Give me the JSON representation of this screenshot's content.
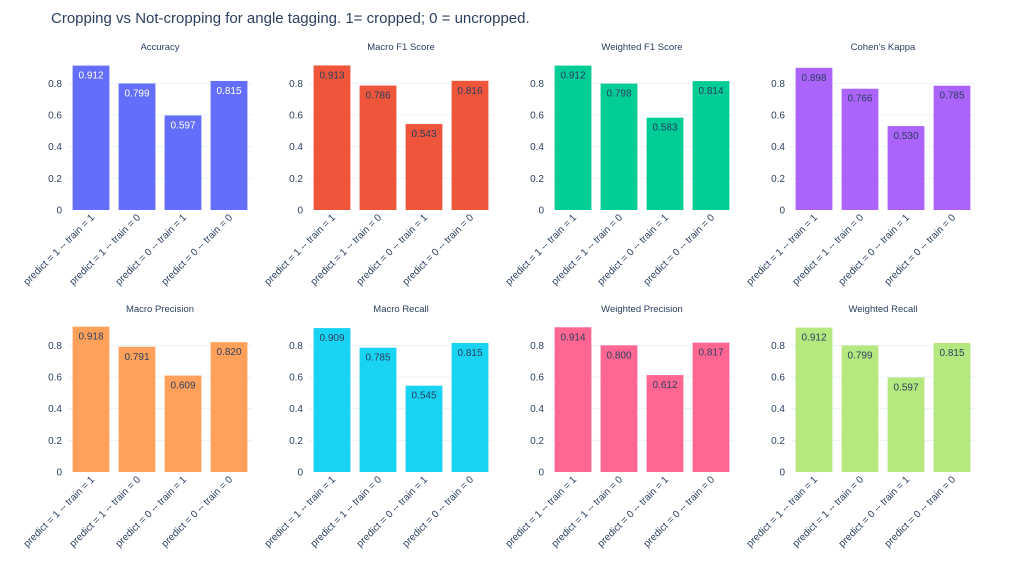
{
  "title": "Cropping vs Not-cropping for angle tagging. 1= cropped; 0 = uncropped.",
  "chart_data": [
    {
      "type": "bar",
      "title": "Accuracy",
      "color": "#636efa",
      "label_color": "#ffffff",
      "categories": [
        "predict = 1 -- train = 1",
        "predict = 1 -- train = 0",
        "predict = 0 -- train = 1",
        "predict = 0 -- train = 0"
      ],
      "values": [
        0.912,
        0.799,
        0.597,
        0.815
      ],
      "labels": [
        "0.912",
        "0.799",
        "0.597",
        "0.815"
      ],
      "yticks": [
        "0",
        "0.2",
        "0.4",
        "0.6",
        "0.8"
      ],
      "ylim": [
        0,
        0.96
      ]
    },
    {
      "type": "bar",
      "title": "Macro F1 Score",
      "color": "#ef553b",
      "label_color": "#2a3f5f",
      "categories": [
        "predict = 1 -- train = 1",
        "predict = 1 -- train = 0",
        "predict = 0 -- train = 1",
        "predict = 0 -- train = 0"
      ],
      "values": [
        0.913,
        0.786,
        0.543,
        0.816
      ],
      "labels": [
        "0.913",
        "0.786",
        "0.543",
        "0.816"
      ],
      "yticks": [
        "0",
        "0.2",
        "0.4",
        "0.6",
        "0.8"
      ],
      "ylim": [
        0,
        0.96
      ]
    },
    {
      "type": "bar",
      "title": "Weighted F1 Score",
      "color": "#00cc96",
      "label_color": "#2a3f5f",
      "categories": [
        "predict = 1 -- train = 1",
        "predict = 1 -- train = 0",
        "predict = 0 -- train = 1",
        "predict = 0 -- train = 0"
      ],
      "values": [
        0.912,
        0.798,
        0.583,
        0.814
      ],
      "labels": [
        "0.912",
        "0.798",
        "0.583",
        "0.814"
      ],
      "yticks": [
        "0",
        "0.2",
        "0.4",
        "0.6",
        "0.8"
      ],
      "ylim": [
        0,
        0.96
      ]
    },
    {
      "type": "bar",
      "title": "Cohen's Kappa",
      "color": "#ab63fa",
      "label_color": "#2a3f5f",
      "categories": [
        "predict = 1 -- train = 1",
        "predict = 1 -- train = 0",
        "predict = 0 -- train = 1",
        "predict = 0 -- train = 0"
      ],
      "values": [
        0.898,
        0.766,
        0.53,
        0.785
      ],
      "labels": [
        "0.898",
        "0.766",
        "0.530",
        "0.785"
      ],
      "yticks": [
        "0",
        "0.2",
        "0.4",
        "0.6",
        "0.8"
      ],
      "ylim": [
        0,
        0.96
      ]
    },
    {
      "type": "bar",
      "title": "Macro Precision",
      "color": "#ffa15a",
      "label_color": "#2a3f5f",
      "categories": [
        "predict = 1 -- train = 1",
        "predict = 1 -- train = 0",
        "predict = 0 -- train = 1",
        "predict = 0 -- train = 0"
      ],
      "values": [
        0.918,
        0.791,
        0.609,
        0.82
      ],
      "labels": [
        "0.918",
        "0.791",
        "0.609",
        "0.820"
      ],
      "yticks": [
        "0",
        "0.2",
        "0.4",
        "0.6",
        "0.8"
      ],
      "ylim": [
        0,
        0.96
      ]
    },
    {
      "type": "bar",
      "title": "Macro Recall",
      "color": "#19d3f3",
      "label_color": "#2a3f5f",
      "categories": [
        "predict = 1 -- train = 1",
        "predict = 1 -- train = 0",
        "predict = 0 -- train = 1",
        "predict = 0 -- train = 0"
      ],
      "values": [
        0.909,
        0.785,
        0.545,
        0.815
      ],
      "labels": [
        "0.909",
        "0.785",
        "0.545",
        "0.815"
      ],
      "yticks": [
        "0",
        "0.2",
        "0.4",
        "0.6",
        "0.8"
      ],
      "ylim": [
        0,
        0.96
      ]
    },
    {
      "type": "bar",
      "title": "Weighted Precision",
      "color": "#ff6692",
      "label_color": "#2a3f5f",
      "categories": [
        "predict = 1 -- train = 1",
        "predict = 1 -- train = 0",
        "predict = 0 -- train = 1",
        "predict = 0 -- train = 0"
      ],
      "values": [
        0.914,
        0.8,
        0.612,
        0.817
      ],
      "labels": [
        "0.914",
        "0.800",
        "0.612",
        "0.817"
      ],
      "yticks": [
        "0",
        "0.2",
        "0.4",
        "0.6",
        "0.8"
      ],
      "ylim": [
        0,
        0.96
      ]
    },
    {
      "type": "bar",
      "title": "Weighted Recall",
      "color": "#b6e880",
      "label_color": "#2a3f5f",
      "categories": [
        "predict = 1 -- train = 1",
        "predict = 1 -- train = 0",
        "predict = 0 -- train = 1",
        "predict = 0 -- train = 0"
      ],
      "values": [
        0.912,
        0.799,
        0.597,
        0.815
      ],
      "labels": [
        "0.912",
        "0.799",
        "0.597",
        "0.815"
      ],
      "yticks": [
        "0",
        "0.2",
        "0.4",
        "0.6",
        "0.8"
      ],
      "ylim": [
        0,
        0.96
      ]
    }
  ]
}
